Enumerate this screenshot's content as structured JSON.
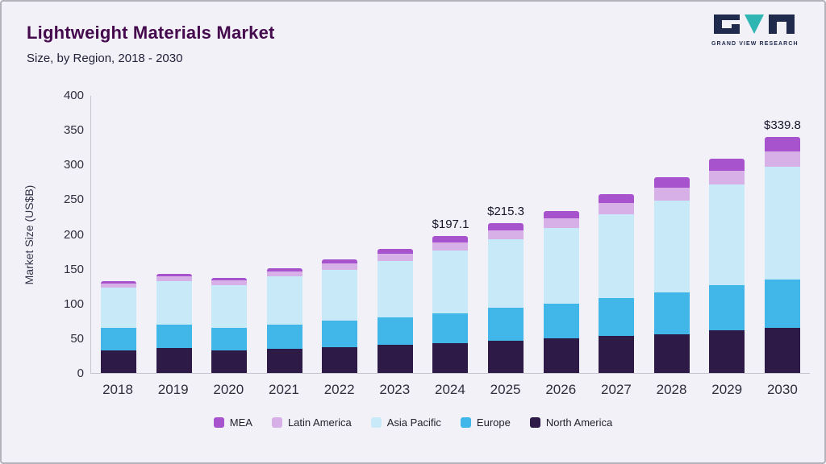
{
  "header": {
    "title": "Lightweight Materials Market",
    "subtitle": "Size, by Region, 2018 - 2030",
    "logo_text": "GRAND VIEW RESEARCH"
  },
  "colors": {
    "title": "#45094d",
    "logo_dark": "#1f2a4d",
    "logo_teal": "#2fb5b2",
    "background": "#f2f1f7",
    "border": "#b3b2bb"
  },
  "chart_data": {
    "type": "bar",
    "stacked": true,
    "title": "Lightweight Materials Market Size, by Region, 2018 - 2030",
    "xlabel": "",
    "ylabel": "Market Size (US$B)",
    "ylim": [
      0,
      400
    ],
    "yticks": [
      0,
      50,
      100,
      150,
      200,
      250,
      300,
      350,
      400
    ],
    "grid": false,
    "legend_position": "bottom",
    "categories": [
      "2018",
      "2019",
      "2020",
      "2021",
      "2022",
      "2023",
      "2024",
      "2025",
      "2026",
      "2027",
      "2028",
      "2029",
      "2030"
    ],
    "series": [
      {
        "name": "North America",
        "color": "#2e1a47",
        "values": [
          33,
          36,
          32,
          35,
          37,
          41,
          43,
          46,
          50,
          53,
          56,
          61,
          65
        ]
      },
      {
        "name": "Europe",
        "color": "#41b6e8",
        "values": [
          32,
          34,
          33,
          35,
          38,
          39,
          43,
          47,
          50,
          55,
          60,
          65,
          70
        ]
      },
      {
        "name": "Asia Pacific",
        "color": "#c8eaf8",
        "values": [
          58,
          63,
          62,
          69,
          73,
          81,
          90,
          99,
          109,
          120,
          132,
          145,
          162
        ]
      },
      {
        "name": "Latin America",
        "color": "#d8b0e8",
        "values": [
          6,
          7,
          7,
          7,
          9,
          11,
          12,
          13,
          14,
          16,
          18,
          20,
          22
        ]
      },
      {
        "name": "MEA",
        "color": "#a753ce",
        "values": [
          4,
          4,
          4,
          5,
          6,
          7,
          9.1,
          10.3,
          11,
          13,
          15,
          17,
          20.8
        ]
      }
    ],
    "totals": [
      133,
      144,
      138,
      151,
      163,
      179,
      197.1,
      215.3,
      234,
      257,
      281,
      308,
      339.8
    ],
    "annotations": [
      {
        "category": "2024",
        "label": "$197.1"
      },
      {
        "category": "2025",
        "label": "$215.3"
      },
      {
        "category": "2030",
        "label": "$339.8"
      }
    ],
    "legend": [
      "MEA",
      "Latin America",
      "Asia Pacific",
      "Europe",
      "North America"
    ]
  }
}
